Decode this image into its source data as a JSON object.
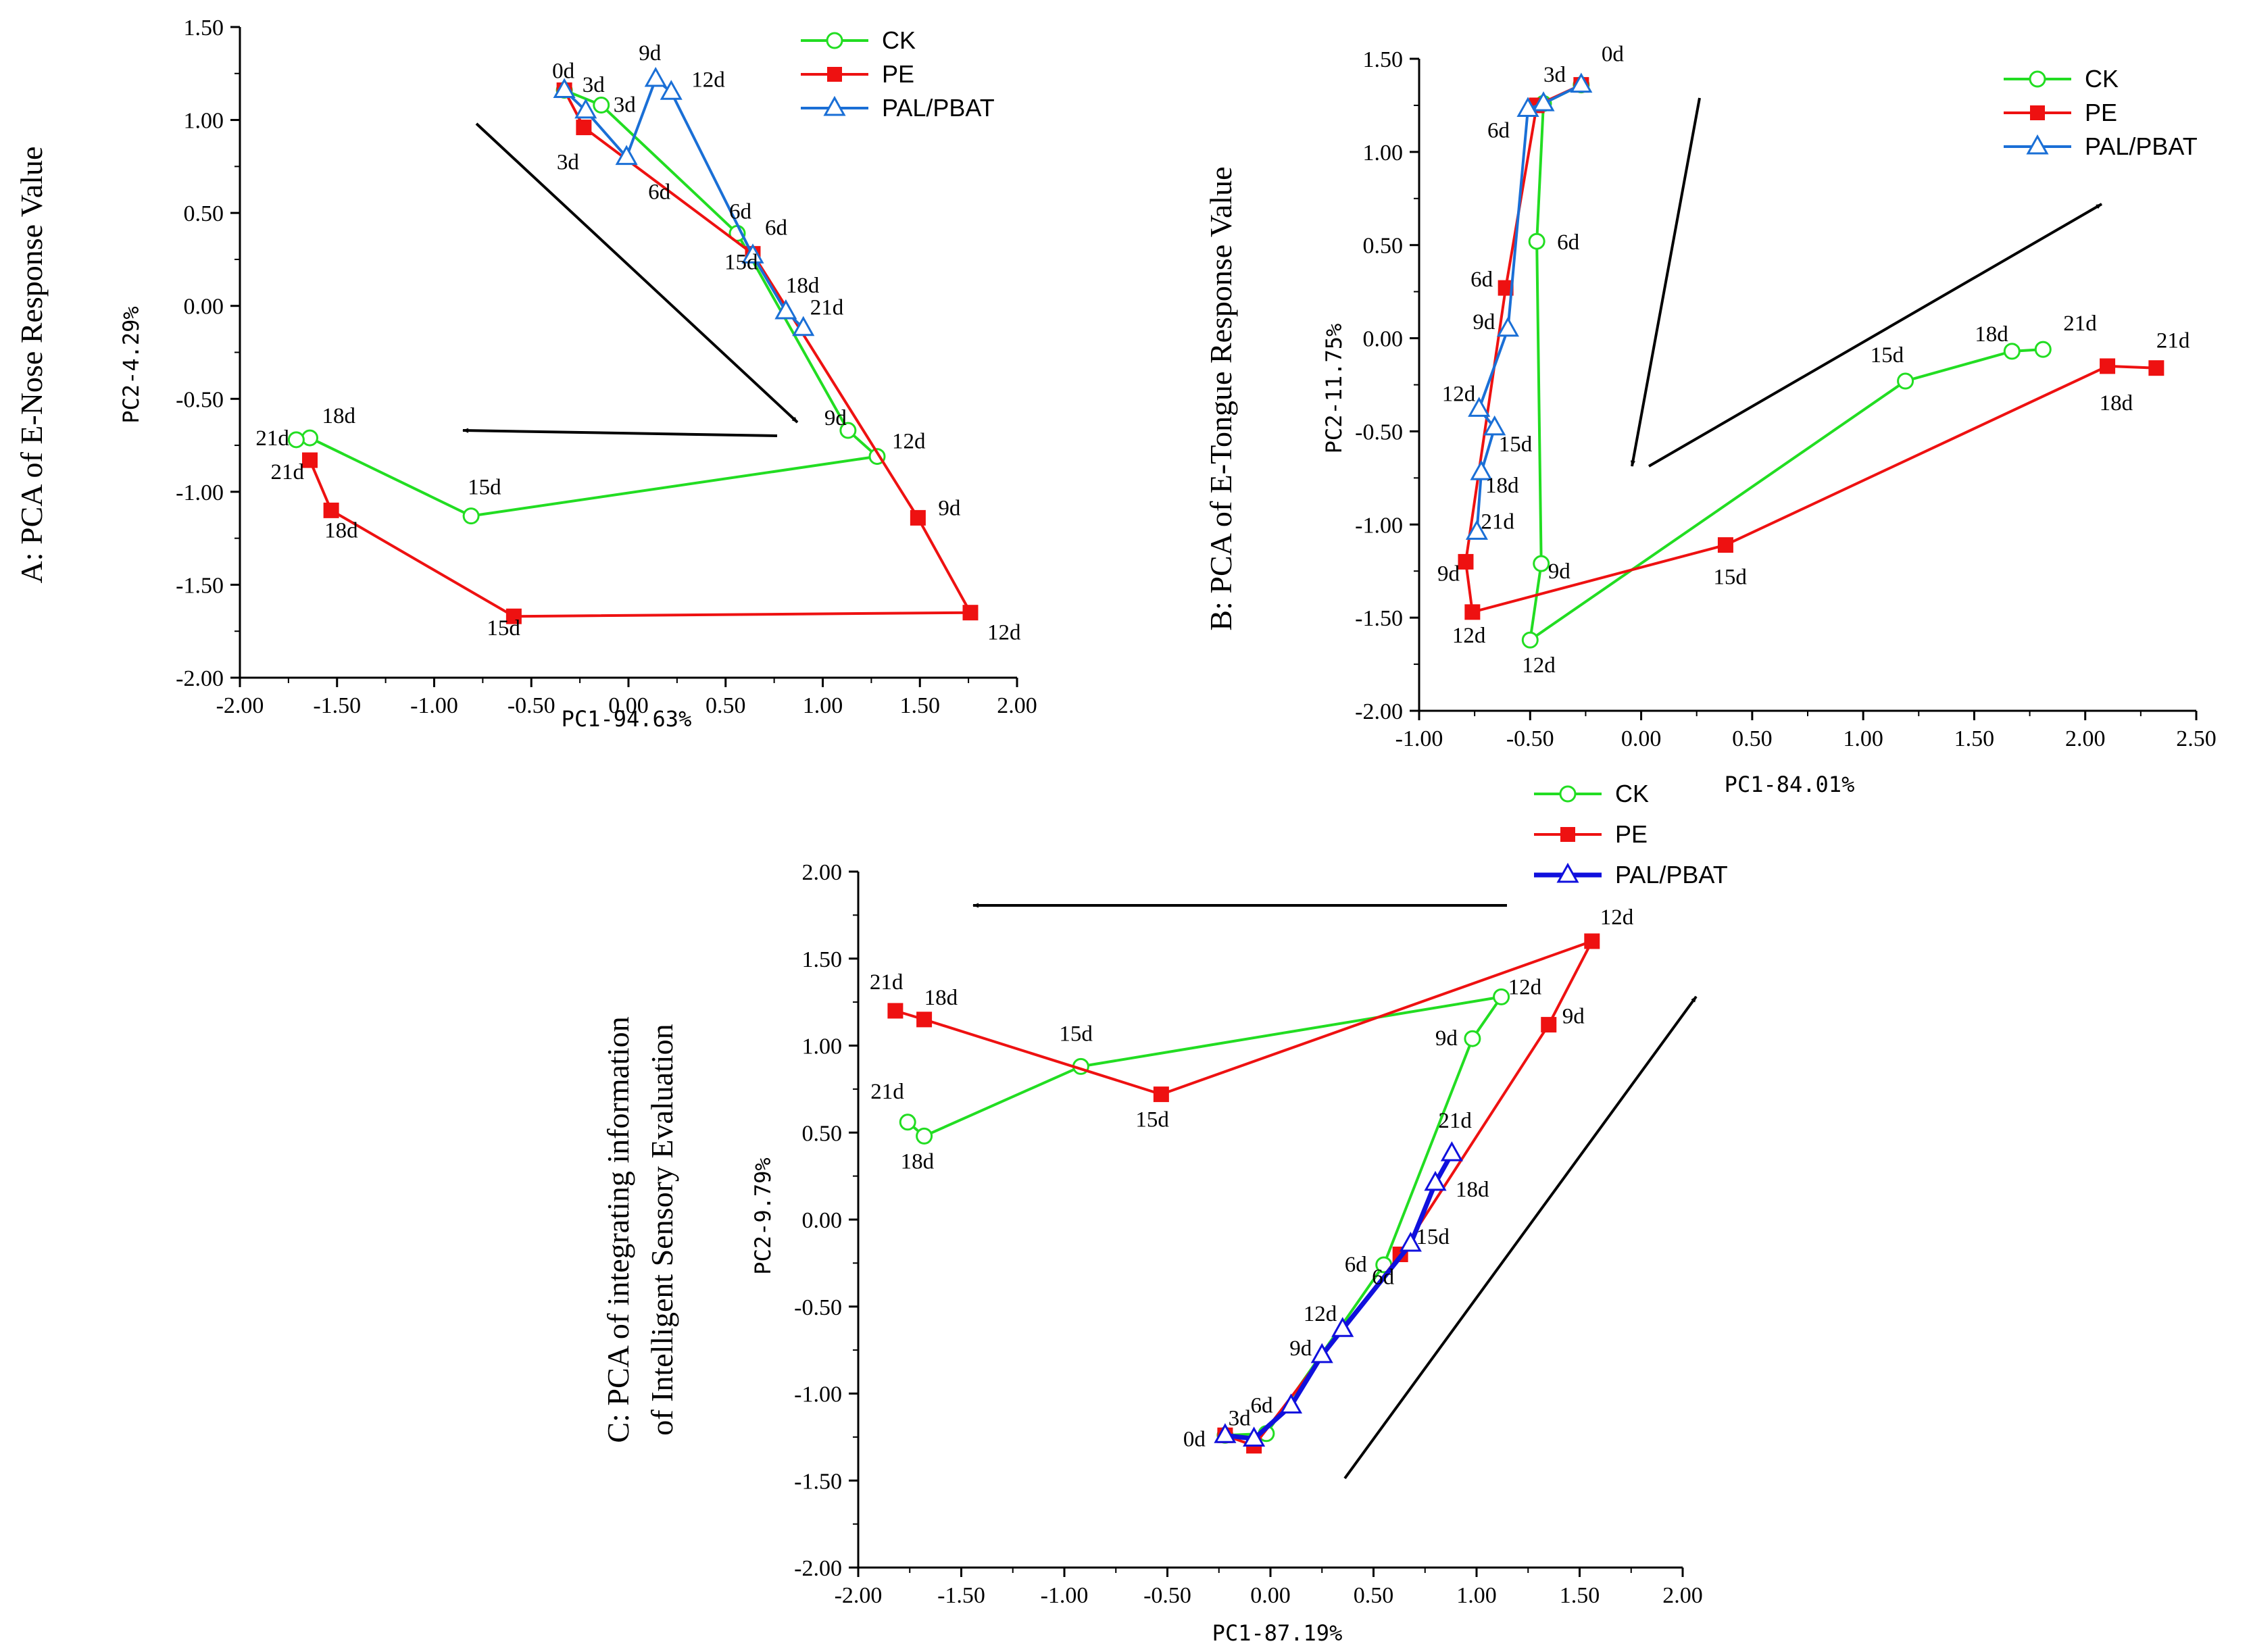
{
  "colors": {
    "CK": "#22dd22",
    "PE": "#ee1111",
    "PAL/PBAT": "#1a6fd6",
    "PAL/PBAT_C": "#1010dd",
    "axis": "#000000"
  },
  "chart_data": [
    {
      "type": "scatter",
      "panel": "A",
      "title": "A:  PCA of E-Nose Response Value",
      "xlabel": "PC1-94.63%",
      "ylabel": "PC2-4.29%",
      "xlim": [
        -2.0,
        2.0
      ],
      "ylim": [
        -2.0,
        1.5
      ],
      "xticks": [
        "-2.00",
        "-1.50",
        "-1.00",
        "-0.50",
        "0.00",
        "0.50",
        "1.00",
        "1.50",
        "2.00"
      ],
      "yticks": [
        "-2.00",
        "-1.50",
        "-1.00",
        "-0.50",
        "0.00",
        "0.50",
        "1.00",
        "1.50"
      ],
      "legend": [
        "CK",
        "PE",
        "PAL/PBAT"
      ],
      "series": [
        {
          "name": "CK",
          "labels": [
            "0d",
            "3d",
            "6d",
            "9d",
            "12d",
            "15d",
            "18d",
            "21d"
          ],
          "x": [
            -0.33,
            -0.14,
            0.56,
            1.13,
            1.28,
            -0.81,
            -1.64,
            -1.71
          ],
          "y": [
            1.16,
            1.08,
            0.39,
            -0.67,
            -0.81,
            -1.13,
            -0.71,
            -0.72
          ]
        },
        {
          "name": "PE",
          "labels": [
            "0d",
            "3d",
            "6d",
            "9d",
            "12d",
            "15d",
            "18d",
            "21d"
          ],
          "x": [
            -0.33,
            -0.23,
            0.64,
            1.49,
            1.76,
            -0.59,
            -1.53,
            -1.64
          ],
          "y": [
            1.16,
            0.96,
            0.28,
            -1.14,
            -1.65,
            -1.67,
            -1.1,
            -0.83
          ]
        },
        {
          "name": "PAL/PBAT",
          "labels": [
            "0d",
            "3d",
            "6d",
            "9d",
            "12d",
            "15d",
            "18d",
            "21d"
          ],
          "x": [
            -0.33,
            -0.22,
            -0.01,
            0.14,
            0.22,
            0.64,
            0.81,
            0.9
          ],
          "y": [
            1.16,
            1.05,
            0.8,
            1.22,
            1.15,
            0.27,
            -0.03,
            -0.12
          ]
        }
      ],
      "annotations": [
        {
          "text": "0d",
          "x": -0.33,
          "y": 1.16
        },
        {
          "text": "3d",
          "x": -0.22,
          "y": 1.05
        },
        {
          "text": "3d",
          "x": -0.14,
          "y": 1.08
        },
        {
          "text": "3d",
          "x": -0.23,
          "y": 0.96
        },
        {
          "text": "6d",
          "x": -0.01,
          "y": 0.8
        },
        {
          "text": "9d",
          "x": 0.14,
          "y": 1.22
        },
        {
          "text": "12d",
          "x": 0.22,
          "y": 1.15
        },
        {
          "text": "6d",
          "x": 0.56,
          "y": 0.39
        },
        {
          "text": "6d",
          "x": 0.64,
          "y": 0.28
        },
        {
          "text": "15d",
          "x": 0.64,
          "y": 0.27
        },
        {
          "text": "18d",
          "x": 0.81,
          "y": -0.03
        },
        {
          "text": "21d",
          "x": 0.9,
          "y": -0.12
        },
        {
          "text": "9d",
          "x": 1.13,
          "y": -0.67
        },
        {
          "text": "12d",
          "x": 1.28,
          "y": -0.81
        },
        {
          "text": "9d",
          "x": 1.49,
          "y": -1.14
        },
        {
          "text": "12d",
          "x": 1.76,
          "y": -1.65
        },
        {
          "text": "15d",
          "x": -0.59,
          "y": -1.67
        },
        {
          "text": "15d",
          "x": -0.81,
          "y": -1.13
        },
        {
          "text": "18d",
          "x": -1.64,
          "y": -0.71
        },
        {
          "text": "21d",
          "x": -1.71,
          "y": -0.72
        },
        {
          "text": "21d",
          "x": -1.64,
          "y": -0.83
        },
        {
          "text": "18d",
          "x": -1.53,
          "y": -1.1
        }
      ]
    },
    {
      "type": "scatter",
      "panel": "B",
      "title": "B:  PCA of E-Tongue Response Value",
      "xlabel": "PC1-84.01%",
      "ylabel": "PC2-11.75%",
      "xlim": [
        -1.0,
        2.5
      ],
      "ylim": [
        -2.0,
        1.5
      ],
      "xticks": [
        "-1.00",
        "-0.50",
        "0.00",
        "0.50",
        "1.00",
        "1.50",
        "2.00",
        "2.50"
      ],
      "yticks": [
        "-2.00",
        "-1.50",
        "-1.00",
        "-0.50",
        "0.00",
        "0.50",
        "1.00",
        "1.50"
      ],
      "legend": [
        "CK",
        "PE",
        "PAL/PBAT"
      ],
      "series": [
        {
          "name": "CK",
          "labels": [
            "0d",
            "3d",
            "6d",
            "9d",
            "12d",
            "15d",
            "18d",
            "21d"
          ],
          "x": [
            -0.27,
            -0.44,
            -0.47,
            -0.45,
            -0.5,
            1.19,
            1.67,
            1.81
          ],
          "y": [
            1.36,
            1.26,
            0.52,
            -1.21,
            -1.62,
            -0.23,
            -0.07,
            -0.06
          ]
        },
        {
          "name": "PE",
          "labels": [
            "0d",
            "3d",
            "6d",
            "9d",
            "12d",
            "15d",
            "18d",
            "21d"
          ],
          "x": [
            -0.27,
            -0.47,
            -0.61,
            -0.79,
            -0.76,
            0.38,
            2.1,
            2.32
          ],
          "y": [
            1.36,
            1.25,
            0.27,
            -1.2,
            -1.47,
            -1.11,
            -0.15,
            -0.16
          ]
        },
        {
          "name": "PAL/PBAT",
          "labels": [
            "0d",
            "3d",
            "6d",
            "9d",
            "12d",
            "15d",
            "18d",
            "21d"
          ],
          "x": [
            -0.27,
            -0.44,
            -0.51,
            -0.6,
            -0.73,
            -0.66,
            -0.72,
            -0.74
          ],
          "y": [
            1.36,
            1.26,
            1.23,
            0.05,
            -0.38,
            -0.48,
            -0.72,
            -1.04
          ]
        }
      ],
      "annotations": [
        {
          "text": "3d",
          "x": -0.44,
          "y": 1.26
        },
        {
          "text": "0d",
          "x": -0.27,
          "y": 1.36
        },
        {
          "text": "6d",
          "x": -0.51,
          "y": 1.23
        },
        {
          "text": "6d",
          "x": -0.47,
          "y": 0.52
        },
        {
          "text": "6d",
          "x": -0.61,
          "y": 0.27
        },
        {
          "text": "9d",
          "x": -0.6,
          "y": 0.05
        },
        {
          "text": "12d",
          "x": -0.73,
          "y": -0.38
        },
        {
          "text": "15d",
          "x": -0.66,
          "y": -0.48
        },
        {
          "text": "18d",
          "x": -0.72,
          "y": -0.72
        },
        {
          "text": "21d",
          "x": -0.74,
          "y": -1.04
        },
        {
          "text": "9d",
          "x": -0.79,
          "y": -1.2
        },
        {
          "text": "9d",
          "x": -0.45,
          "y": -1.21
        },
        {
          "text": "12d",
          "x": -0.76,
          "y": -1.47
        },
        {
          "text": "12d",
          "x": -0.5,
          "y": -1.62
        },
        {
          "text": "15d",
          "x": 0.38,
          "y": -1.11
        },
        {
          "text": "15d",
          "x": 1.19,
          "y": -0.23
        },
        {
          "text": "18d",
          "x": 1.67,
          "y": -0.07
        },
        {
          "text": "21d",
          "x": 1.81,
          "y": -0.06
        },
        {
          "text": "18d",
          "x": 2.1,
          "y": -0.15
        },
        {
          "text": "21d",
          "x": 2.32,
          "y": -0.16
        }
      ]
    },
    {
      "type": "scatter",
      "panel": "C",
      "title_line1": "C:  PCA of integrating information",
      "title_line2": "of Intelligent Sensory Evaluation",
      "xlabel": "PC1-87.19%",
      "ylabel": "PC2-9.79%",
      "xlim": [
        -2.0,
        2.0
      ],
      "ylim": [
        -2.0,
        2.0
      ],
      "xticks": [
        "-2.00",
        "-1.50",
        "-1.00",
        "-0.50",
        "0.00",
        "0.50",
        "1.00",
        "1.50",
        "2.00"
      ],
      "yticks": [
        "-2.00",
        "-1.50",
        "-1.00",
        "-0.50",
        "0.00",
        "0.50",
        "1.00",
        "1.50",
        "2.00"
      ],
      "legend": [
        "CK",
        "PE",
        "PAL/PBAT"
      ],
      "series": [
        {
          "name": "CK",
          "labels": [
            "0d",
            "3d",
            "6d",
            "9d",
            "12d",
            "15d",
            "18d",
            "21d"
          ],
          "x": [
            -0.22,
            -0.02,
            0.55,
            0.98,
            1.12,
            -0.92,
            -1.68,
            -1.76
          ],
          "y": [
            -1.24,
            -1.23,
            -0.26,
            1.04,
            1.28,
            0.88,
            0.48,
            0.56
          ]
        },
        {
          "name": "PE",
          "labels": [
            "0d",
            "3d",
            "6d",
            "9d",
            "12d",
            "15d",
            "18d",
            "21d"
          ],
          "x": [
            -0.22,
            -0.08,
            0.63,
            1.35,
            1.56,
            -0.53,
            -1.68,
            -1.82
          ],
          "y": [
            -1.24,
            -1.3,
            -0.2,
            1.12,
            1.6,
            0.72,
            1.15,
            1.2
          ]
        },
        {
          "name": "PAL/PBAT",
          "labels": [
            "0d",
            "3d",
            "6d",
            "9d",
            "12d",
            "15d",
            "18d",
            "21d"
          ],
          "x": [
            -0.22,
            -0.08,
            0.1,
            0.25,
            0.35,
            0.68,
            0.8,
            0.88
          ],
          "y": [
            -1.24,
            -1.26,
            -1.07,
            -0.78,
            -0.63,
            -0.14,
            0.21,
            0.38
          ]
        }
      ],
      "annotations": [
        {
          "text": "0d",
          "x": -0.22,
          "y": -1.24
        },
        {
          "text": "3d",
          "x": -0.08,
          "y": -1.26
        },
        {
          "text": "6d",
          "x": 0.1,
          "y": -1.07
        },
        {
          "text": "9d",
          "x": 0.25,
          "y": -0.78
        },
        {
          "text": "12d",
          "x": 0.35,
          "y": -0.63
        },
        {
          "text": "6d",
          "x": 0.55,
          "y": -0.26
        },
        {
          "text": "6d",
          "x": 0.63,
          "y": -0.2
        },
        {
          "text": "15d",
          "x": 0.68,
          "y": -0.14
        },
        {
          "text": "18d",
          "x": 0.8,
          "y": 0.21
        },
        {
          "text": "21d",
          "x": 0.88,
          "y": 0.38
        },
        {
          "text": "9d",
          "x": 0.98,
          "y": 1.04
        },
        {
          "text": "12d",
          "x": 1.12,
          "y": 1.28
        },
        {
          "text": "9d",
          "x": 1.35,
          "y": 1.12
        },
        {
          "text": "12d",
          "x": 1.56,
          "y": 1.6
        },
        {
          "text": "15d",
          "x": -0.92,
          "y": 0.88
        },
        {
          "text": "15d",
          "x": -0.53,
          "y": 0.72
        },
        {
          "text": "21d",
          "x": -1.82,
          "y": 1.2
        },
        {
          "text": "18d",
          "x": -1.68,
          "y": 1.15
        },
        {
          "text": "21d",
          "x": -1.76,
          "y": 0.56
        },
        {
          "text": "18d",
          "x": -1.68,
          "y": 0.48
        }
      ]
    }
  ]
}
